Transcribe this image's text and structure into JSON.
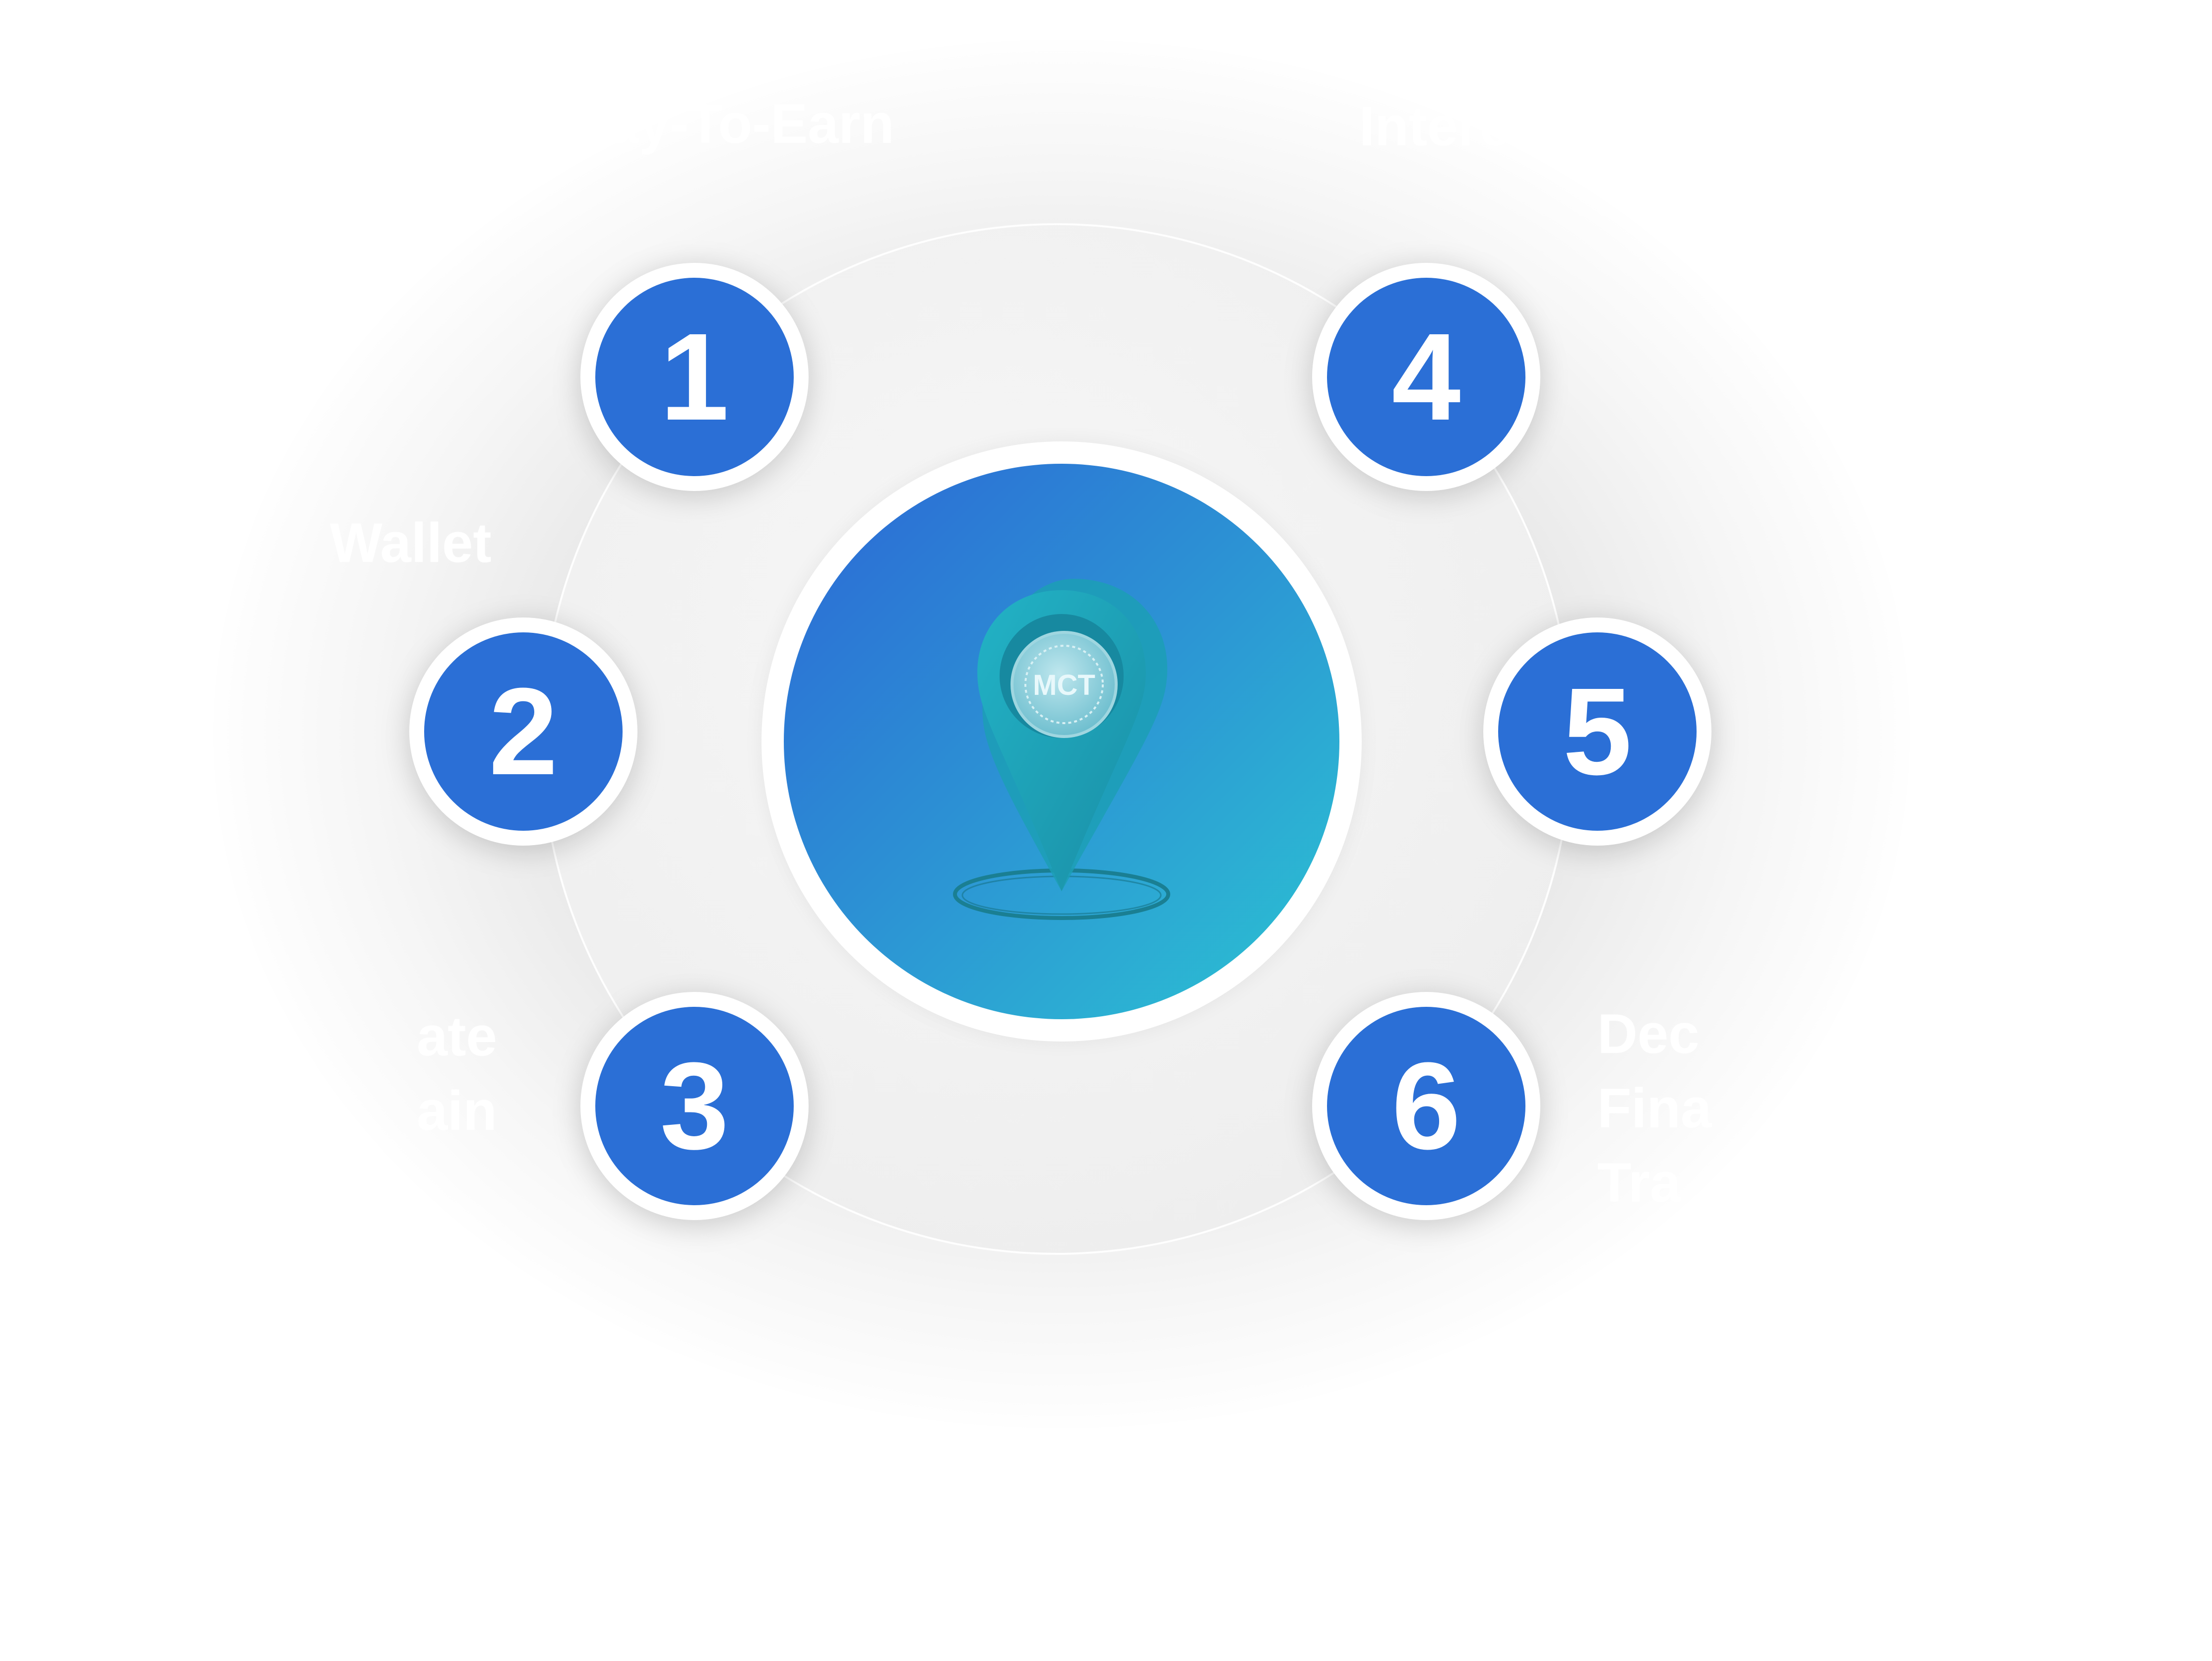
{
  "colors": {
    "node_fill": "#2b6fd6",
    "node_ring": "#ffffff",
    "hub_gradient_start": "#2c67d6",
    "hub_gradient_end": "#2bc4d2",
    "pin_color": "#1fa3b8",
    "label_color": "#ffffff"
  },
  "hub": {
    "icon": "location-pin-icon",
    "coin_text": "MCT"
  },
  "nodes": [
    {
      "number": "1",
      "label": "Play-To-Earn"
    },
    {
      "number": "2",
      "label": "Wallet"
    },
    {
      "number": "3",
      "label": "ate\nain"
    },
    {
      "number": "4",
      "label": "Interest"
    },
    {
      "number": "5",
      "label": ""
    },
    {
      "number": "6",
      "label": "Dec\nFina\nTra"
    }
  ]
}
